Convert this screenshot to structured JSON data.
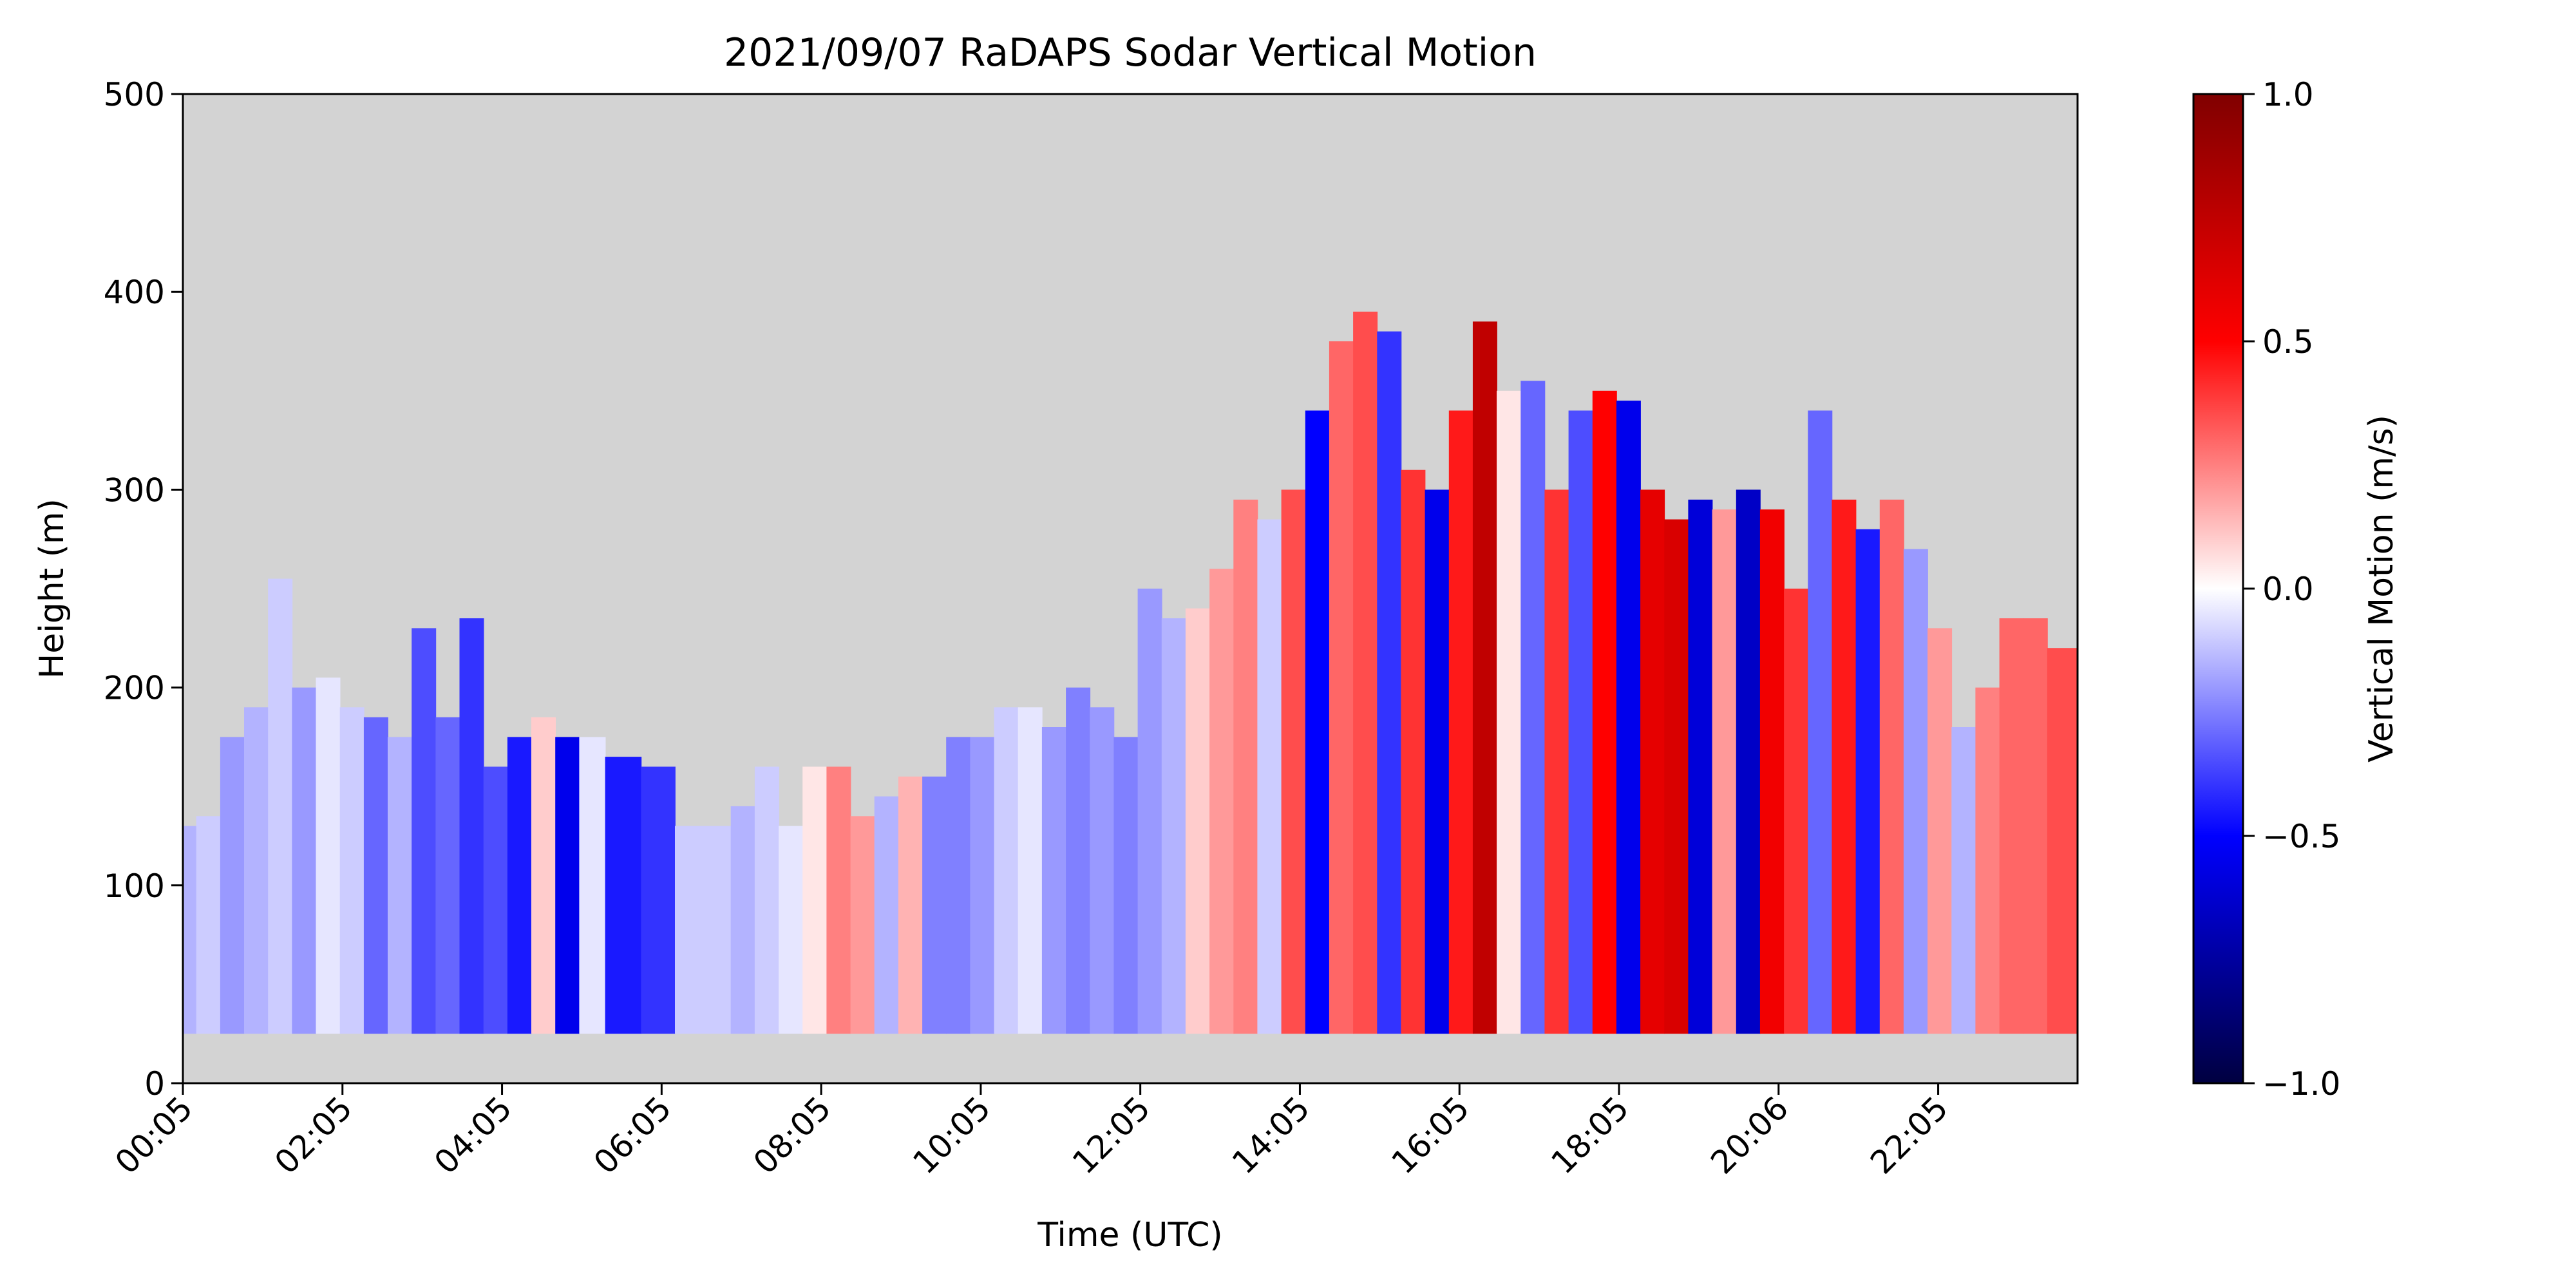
{
  "chart_data": {
    "type": "heatmap",
    "title": "2021/09/07 RaDAPS Sodar Vertical Motion",
    "xlabel": "Time (UTC)",
    "ylabel": "Height (m)",
    "x_tick_labels": [
      "00:05",
      "02:05",
      "04:05",
      "06:05",
      "08:05",
      "10:05",
      "12:05",
      "14:05",
      "16:05",
      "18:05",
      "20:06",
      "22:05"
    ],
    "x_range_hours": [
      0.083,
      23.83
    ],
    "y_ticks": [
      0,
      100,
      200,
      300,
      400,
      500
    ],
    "ylim": [
      0,
      500
    ],
    "colorbar": {
      "label": "Vertical Motion (m/s)",
      "colormap": "seismic",
      "ticks": [
        -1.0,
        -0.5,
        0.0,
        0.5,
        1.0
      ],
      "tick_labels": [
        "−1.0",
        "−0.5",
        "0.0",
        "0.5",
        "1.0"
      ],
      "vmin": -1.0,
      "vmax": 1.0
    },
    "background_color": "#d3d3d3",
    "data_floor_m": 25,
    "values_note": "approximate column-wise mean vertical motion (m/s) and top height (m) of valid data, read from colors",
    "profile_hours": [
      0.1,
      0.4,
      0.7,
      1.0,
      1.3,
      1.6,
      1.9,
      2.2,
      2.5,
      2.8,
      3.1,
      3.4,
      3.7,
      4.0,
      4.3,
      4.6,
      4.9,
      5.2,
      5.55,
      6.1,
      6.4,
      6.8,
      7.1,
      7.4,
      7.7,
      8.0,
      8.3,
      8.6,
      8.9,
      9.2,
      9.5,
      9.8,
      10.1,
      10.4,
      10.7,
      11.0,
      11.3,
      11.6,
      11.9,
      12.2,
      12.5,
      12.8,
      13.1,
      13.4,
      13.7,
      14.0,
      14.3,
      14.6,
      14.9,
      15.2,
      15.5,
      15.8,
      16.1,
      16.4,
      16.7,
      17.0,
      17.3,
      17.6,
      17.9,
      18.2,
      18.5,
      18.8,
      19.1,
      19.4,
      19.7,
      20.0,
      20.3,
      20.6,
      20.9,
      21.2,
      21.5,
      21.8,
      22.1,
      22.4,
      22.7,
      23.0,
      23.3,
      23.6
    ],
    "profile_top_m": [
      130,
      135,
      175,
      190,
      255,
      200,
      205,
      190,
      185,
      175,
      230,
      185,
      235,
      160,
      175,
      185,
      175,
      175,
      165,
      160,
      130,
      130,
      140,
      160,
      130,
      160,
      160,
      135,
      145,
      155,
      155,
      175,
      175,
      190,
      190,
      180,
      200,
      190,
      175,
      250,
      235,
      240,
      260,
      295,
      285,
      300,
      340,
      375,
      390,
      380,
      310,
      300,
      340,
      385,
      350,
      355,
      300,
      340,
      350,
      345,
      300,
      285,
      295,
      290,
      300,
      290,
      250,
      340,
      295,
      280,
      295,
      270,
      230,
      180,
      200,
      235,
      235,
      220
    ],
    "profile_mean_m_s": [
      -0.15,
      -0.1,
      -0.2,
      -0.15,
      -0.1,
      -0.2,
      -0.05,
      -0.1,
      -0.3,
      -0.15,
      -0.35,
      -0.3,
      -0.4,
      -0.35,
      -0.45,
      0.1,
      -0.55,
      -0.05,
      -0.45,
      -0.4,
      -0.1,
      -0.1,
      -0.15,
      -0.1,
      -0.05,
      0.05,
      0.25,
      0.2,
      -0.15,
      0.15,
      -0.25,
      -0.25,
      -0.2,
      -0.1,
      -0.05,
      -0.2,
      -0.25,
      -0.2,
      -0.25,
      -0.2,
      -0.15,
      0.1,
      0.2,
      0.25,
      -0.1,
      0.35,
      -0.5,
      0.3,
      0.35,
      -0.4,
      0.4,
      -0.55,
      0.45,
      0.75,
      0.05,
      -0.3,
      0.4,
      -0.35,
      0.5,
      -0.55,
      0.6,
      0.65,
      -0.6,
      0.2,
      -0.65,
      0.55,
      0.4,
      -0.3,
      0.45,
      -0.45,
      0.3,
      -0.2,
      0.2,
      -0.15,
      0.25,
      0.3,
      0.3,
      0.35
    ]
  }
}
